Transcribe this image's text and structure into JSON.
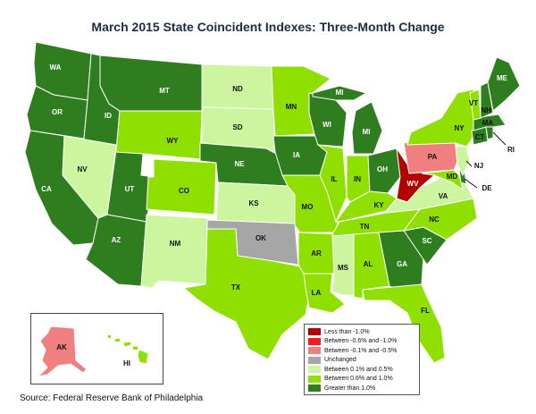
{
  "title": "March 2015 State Coincident Indexes: Three-Month Change",
  "source": "Source: Federal Reserve Bank of Philadelphia",
  "legend": [
    {
      "label": "Less than -1.0%",
      "color": "#b30000"
    },
    {
      "label": "Between -0.6% and -1.0%",
      "color": "#ff1a1a"
    },
    {
      "label": "Between -0.1% and -0.5%",
      "color": "#f08080"
    },
    {
      "label": "Unchanged",
      "color": "#a6a6a6"
    },
    {
      "label": "Between 0.1% and 0.5%",
      "color": "#ccf5a0"
    },
    {
      "label": "Between 0.6% and 1.0%",
      "color": "#8fe000"
    },
    {
      "label": "Greater than 1.0%",
      "color": "#2e7d1f"
    }
  ],
  "colors": {
    "c1": "#ccf5a0",
    "c2": "#8fe000",
    "c3": "#2e7d1f",
    "neg1": "#f08080",
    "neg3": "#b30000",
    "zero": "#a6a6a6"
  },
  "states": {
    "WA": {
      "label": "WA",
      "cat": "c3"
    },
    "OR": {
      "label": "OR",
      "cat": "c3"
    },
    "CA": {
      "label": "CA",
      "cat": "c3"
    },
    "ID": {
      "label": "ID",
      "cat": "c3"
    },
    "NV": {
      "label": "NV",
      "cat": "c1"
    },
    "UT": {
      "label": "UT",
      "cat": "c3"
    },
    "AZ": {
      "label": "AZ",
      "cat": "c3"
    },
    "MT": {
      "label": "MT",
      "cat": "c3"
    },
    "WY": {
      "label": "WY",
      "cat": "c2"
    },
    "CO": {
      "label": "CO",
      "cat": "c2"
    },
    "NM": {
      "label": "NM",
      "cat": "c1"
    },
    "ND": {
      "label": "ND",
      "cat": "c1"
    },
    "SD": {
      "label": "SD",
      "cat": "c1"
    },
    "NE": {
      "label": "NE",
      "cat": "c3"
    },
    "KS": {
      "label": "KS",
      "cat": "c1"
    },
    "OK": {
      "label": "OK",
      "cat": "zero"
    },
    "TX": {
      "label": "TX",
      "cat": "c2"
    },
    "MN": {
      "label": "MN",
      "cat": "c2"
    },
    "IA": {
      "label": "IA",
      "cat": "c3"
    },
    "MO": {
      "label": "MO",
      "cat": "c2"
    },
    "AR": {
      "label": "AR",
      "cat": "c2"
    },
    "LA": {
      "label": "LA",
      "cat": "c2"
    },
    "WI": {
      "label": "WI",
      "cat": "c3"
    },
    "IL": {
      "label": "IL",
      "cat": "c2"
    },
    "MI": {
      "label": "MI",
      "cat": "c3"
    },
    "IN": {
      "label": "IN",
      "cat": "c2"
    },
    "OH": {
      "label": "OH",
      "cat": "c3"
    },
    "KY": {
      "label": "KY",
      "cat": "c2"
    },
    "TN": {
      "label": "TN",
      "cat": "c2"
    },
    "MS": {
      "label": "MS",
      "cat": "c1"
    },
    "AL": {
      "label": "AL",
      "cat": "c2"
    },
    "GA": {
      "label": "GA",
      "cat": "c3"
    },
    "FL": {
      "label": "FL",
      "cat": "c2"
    },
    "SC": {
      "label": "SC",
      "cat": "c3"
    },
    "NC": {
      "label": "NC",
      "cat": "c2"
    },
    "VA": {
      "label": "VA",
      "cat": "c1"
    },
    "WV": {
      "label": "WV",
      "cat": "neg3"
    },
    "PA": {
      "label": "PA",
      "cat": "neg1"
    },
    "NY": {
      "label": "NY",
      "cat": "c2"
    },
    "MD": {
      "label": "MD",
      "cat": "c2"
    },
    "DE": {
      "label": "DE",
      "cat": "c3"
    },
    "NJ": {
      "label": "NJ",
      "cat": "c1"
    },
    "CT": {
      "label": "CT",
      "cat": "c3"
    },
    "RI": {
      "label": "RI",
      "cat": "c3"
    },
    "MA": {
      "label": "MA",
      "cat": "c3"
    },
    "VT": {
      "label": "VT",
      "cat": "c2"
    },
    "NH": {
      "label": "NH",
      "cat": "c3"
    },
    "ME": {
      "label": "ME",
      "cat": "c3"
    },
    "AK": {
      "label": "AK",
      "cat": "neg1"
    },
    "HI": {
      "label": "HI",
      "cat": "c2"
    }
  }
}
